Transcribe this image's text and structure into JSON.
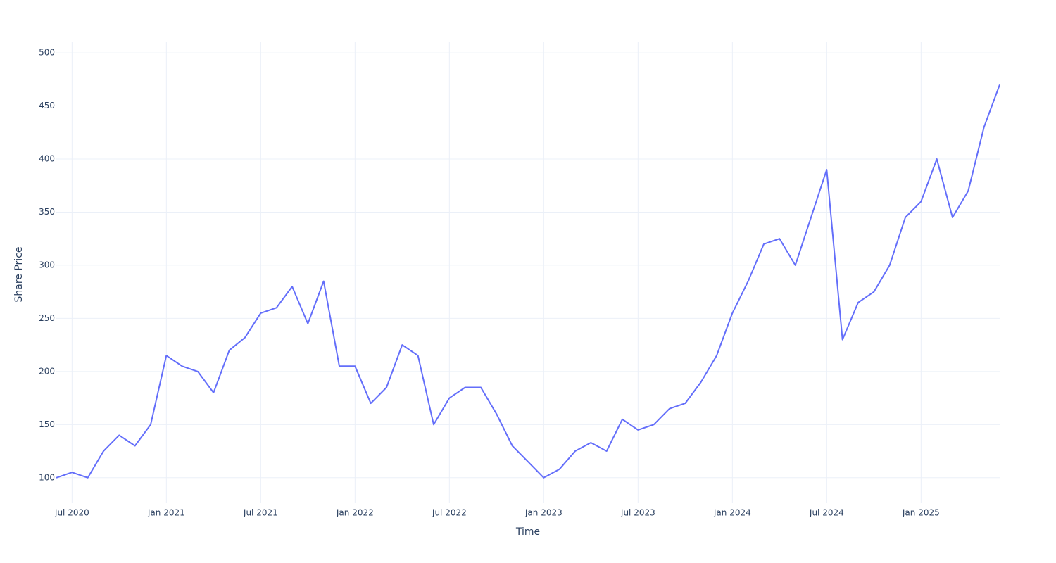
{
  "chart_data": {
    "type": "line",
    "x_label": "Time",
    "y_label": "Share Price",
    "x": [
      "2020-06",
      "2020-07",
      "2020-08",
      "2020-09",
      "2020-10",
      "2020-11",
      "2020-12",
      "2021-01",
      "2021-02",
      "2021-03",
      "2021-04",
      "2021-05",
      "2021-06",
      "2021-07",
      "2021-08",
      "2021-09",
      "2021-10",
      "2021-11",
      "2021-12",
      "2022-01",
      "2022-02",
      "2022-03",
      "2022-04",
      "2022-05",
      "2022-06",
      "2022-07",
      "2022-08",
      "2022-09",
      "2022-10",
      "2022-11",
      "2022-12",
      "2023-01",
      "2023-02",
      "2023-03",
      "2023-04",
      "2023-05",
      "2023-06",
      "2023-07",
      "2023-08",
      "2023-09",
      "2023-10",
      "2023-11",
      "2023-12",
      "2024-01",
      "2024-02",
      "2024-03",
      "2024-04",
      "2024-05",
      "2024-06",
      "2024-07",
      "2024-08",
      "2024-09",
      "2024-10",
      "2024-11",
      "2024-12",
      "2025-01",
      "2025-02",
      "2025-03",
      "2025-04",
      "2025-05",
      "2025-06"
    ],
    "series": [
      {
        "color": "#636efa",
        "values": [
          100,
          105,
          100,
          125,
          140,
          130,
          150,
          215,
          205,
          200,
          180,
          220,
          232,
          255,
          260,
          280,
          245,
          285,
          205,
          205,
          170,
          185,
          225,
          215,
          150,
          175,
          185,
          185,
          160,
          130,
          115,
          100,
          108,
          125,
          133,
          125,
          155,
          145,
          150,
          165,
          170,
          190,
          215,
          255,
          285,
          320,
          325,
          300,
          345,
          390,
          230,
          265,
          275,
          300,
          345,
          360,
          400,
          345,
          370,
          430,
          470
        ]
      }
    ],
    "xlim": [
      "2020-06",
      "2025-06"
    ],
    "xticks": [
      {
        "value": "2020-07",
        "label": "Jul 2020"
      },
      {
        "value": "2021-01",
        "label": "Jan 2021"
      },
      {
        "value": "2021-07",
        "label": "Jul 2021"
      },
      {
        "value": "2022-01",
        "label": "Jan 2022"
      },
      {
        "value": "2022-07",
        "label": "Jul 2022"
      },
      {
        "value": "2023-01",
        "label": "Jan 2023"
      },
      {
        "value": "2023-07",
        "label": "Jul 2023"
      },
      {
        "value": "2024-01",
        "label": "Jan 2024"
      },
      {
        "value": "2024-07",
        "label": "Jul 2024"
      },
      {
        "value": "2025-01",
        "label": "Jan 2025"
      }
    ],
    "ylim": [
      76,
      510
    ],
    "yticks": [
      100,
      150,
      200,
      250,
      300,
      350,
      400,
      450,
      500
    ],
    "grid": true
  }
}
